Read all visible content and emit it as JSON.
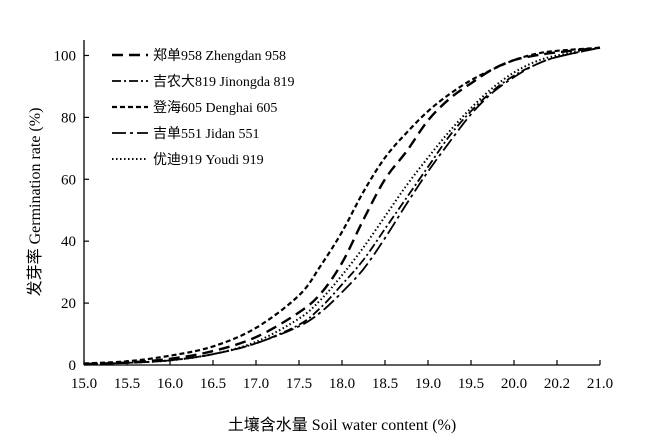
{
  "chart_data": {
    "type": "line",
    "xlabel": "土壤含水量 Soil water content (%)",
    "ylabel": "发芽率 Germination rate (%)",
    "x_ticks": [
      "15.0",
      "15.5",
      "16.0",
      "16.5",
      "17.0",
      "17.5",
      "18.0",
      "18.5",
      "19.0",
      "19.5",
      "20.0",
      "20.2",
      "21.0"
    ],
    "y_ticks": [
      "0",
      "20",
      "40",
      "60",
      "80",
      "100"
    ],
    "xlim": [
      15.0,
      21.0
    ],
    "ylim": [
      0,
      105
    ],
    "grid": false,
    "legend_position": "top-left",
    "series": [
      {
        "name": "郑单958 Zhengdan 958",
        "line_style": "dash",
        "x": [
          15.0,
          15.5,
          16.0,
          16.5,
          17.0,
          17.5,
          17.75,
          18.0,
          18.25,
          18.5,
          18.75,
          19.0,
          19.25,
          19.5,
          19.75,
          20.0,
          20.25,
          20.5,
          21.0
        ],
        "y": [
          0.3,
          0.8,
          2,
          4.5,
          9,
          17,
          23,
          33,
          47,
          60,
          69,
          79,
          86,
          91,
          95.5,
          98.5,
          100,
          101,
          102.5
        ]
      },
      {
        "name": "吉农大819 Jinongda 819",
        "line_style": "dash-dot",
        "x": [
          15.0,
          15.5,
          16.0,
          16.5,
          17.0,
          17.5,
          17.75,
          18.0,
          18.25,
          18.5,
          18.75,
          19.0,
          19.25,
          19.5,
          19.75,
          20.0,
          20.25,
          20.5,
          21.0
        ],
        "y": [
          0.3,
          0.7,
          1.5,
          3.5,
          7,
          13,
          18.5,
          26,
          34,
          44,
          54,
          64,
          74,
          82,
          88.5,
          93.5,
          97,
          99.5,
          102.5
        ]
      },
      {
        "name": "登海605 Denghai 605",
        "line_style": "short-dash",
        "x": [
          15.0,
          15.5,
          16.0,
          16.5,
          17.0,
          17.5,
          17.75,
          18.0,
          18.25,
          18.5,
          18.75,
          19.0,
          19.25,
          19.5,
          19.75,
          20.0,
          20.25,
          20.5,
          21.0
        ],
        "y": [
          0.5,
          1.2,
          3,
          6,
          12,
          22.5,
          32,
          43,
          56,
          67,
          75,
          82,
          87.5,
          92,
          95.5,
          98.5,
          100.5,
          101.5,
          102.5
        ]
      },
      {
        "name": "吉单551 Jidan 551",
        "line_style": "long-dash-dot",
        "x": [
          15.0,
          15.5,
          16.0,
          16.5,
          17.0,
          17.5,
          17.75,
          18.0,
          18.25,
          18.5,
          18.75,
          19.0,
          19.25,
          19.5,
          19.75,
          20.0,
          20.25,
          20.5,
          21.0
        ],
        "y": [
          0.3,
          0.7,
          1.5,
          3.5,
          7,
          12.5,
          17,
          23.5,
          31,
          41,
          52,
          62.5,
          72,
          81,
          88,
          93,
          97,
          99.5,
          102.5
        ]
      },
      {
        "name": "优迪919 Youdi 919",
        "line_style": "dot",
        "x": [
          15.0,
          15.5,
          16.0,
          16.5,
          17.0,
          17.5,
          17.75,
          18.0,
          18.25,
          18.5,
          18.75,
          19.0,
          19.25,
          19.5,
          19.75,
          20.0,
          20.25,
          20.5,
          21.0
        ],
        "y": [
          0.3,
          0.7,
          1.5,
          3.5,
          7.5,
          15,
          21,
          29,
          38,
          48,
          58,
          67,
          75.5,
          83,
          89.5,
          94.5,
          98,
          100,
          102.5
        ]
      }
    ]
  }
}
